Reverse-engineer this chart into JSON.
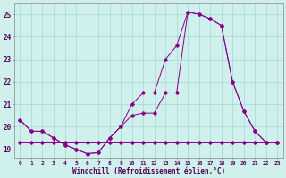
{
  "background_color": "#cff0ec",
  "grid_color": "#a8d8d4",
  "line_color": "#880088",
  "xlabel": "Windchill (Refroidissement éolien,°C)",
  "xlim": [
    -0.5,
    23.5
  ],
  "ylim": [
    18.6,
    25.5
  ],
  "yticks": [
    19,
    20,
    21,
    22,
    23,
    24,
    25
  ],
  "xticks": [
    0,
    1,
    2,
    3,
    4,
    5,
    6,
    7,
    8,
    9,
    10,
    11,
    12,
    13,
    14,
    15,
    16,
    17,
    18,
    19,
    20,
    21,
    22,
    23
  ],
  "line1_y": [
    20.3,
    19.8,
    19.8,
    19.5,
    19.2,
    19.0,
    18.8,
    18.85,
    19.5,
    20.0,
    20.5,
    20.6,
    20.6,
    21.5,
    21.5,
    25.1,
    25.0,
    24.8,
    24.5,
    22.0,
    20.7,
    19.8,
    19.3,
    19.3
  ],
  "line2_y": [
    20.3,
    19.8,
    19.8,
    19.5,
    19.2,
    19.0,
    18.8,
    18.85,
    19.5,
    20.0,
    21.0,
    21.5,
    21.5,
    23.0,
    23.6,
    25.1,
    25.0,
    24.8,
    24.5,
    22.0,
    20.7,
    19.8,
    19.3,
    19.3
  ],
  "line3_y": [
    19.3,
    19.3,
    19.3,
    19.3,
    19.3,
    19.3,
    19.3,
    19.3,
    19.3,
    19.3,
    19.3,
    19.3,
    19.3,
    19.3,
    19.3,
    19.3,
    19.3,
    19.3,
    19.3,
    19.3,
    19.3,
    19.3,
    19.3,
    19.3
  ]
}
